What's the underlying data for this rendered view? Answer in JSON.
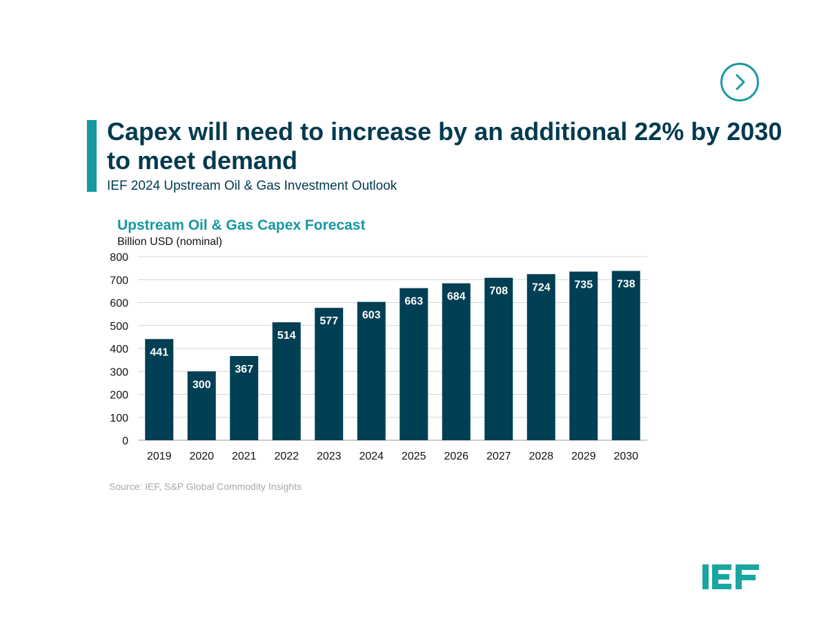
{
  "nav": {
    "next_icon": "chevron-right-icon",
    "accent_color": "#1798a0"
  },
  "header": {
    "title": "Capex will need to increase by an additional 22% by 2030 to meet demand",
    "subtitle": "IEF 2024 Upstream Oil & Gas Investment Outlook"
  },
  "chart_data": {
    "type": "bar",
    "title": "Upstream Oil & Gas Capex Forecast",
    "ylabel": "Billion USD (nominal)",
    "xlabel": "",
    "categories": [
      "2019",
      "2020",
      "2021",
      "2022",
      "2023",
      "2024",
      "2025",
      "2026",
      "2027",
      "2028",
      "2029",
      "2030"
    ],
    "values": [
      441,
      300,
      367,
      514,
      577,
      603,
      663,
      684,
      708,
      724,
      735,
      738
    ],
    "ylim": [
      0,
      800
    ],
    "yticks": [
      0,
      100,
      200,
      300,
      400,
      500,
      600,
      700,
      800
    ],
    "grid": true,
    "legend": "none",
    "bar_color": "#003f54",
    "data_labels": true
  },
  "footer": {
    "source": "Source: IEF, S&P Global Commodity Insights",
    "logo_text": "IEF",
    "logo_color": "#1aa6a0"
  }
}
